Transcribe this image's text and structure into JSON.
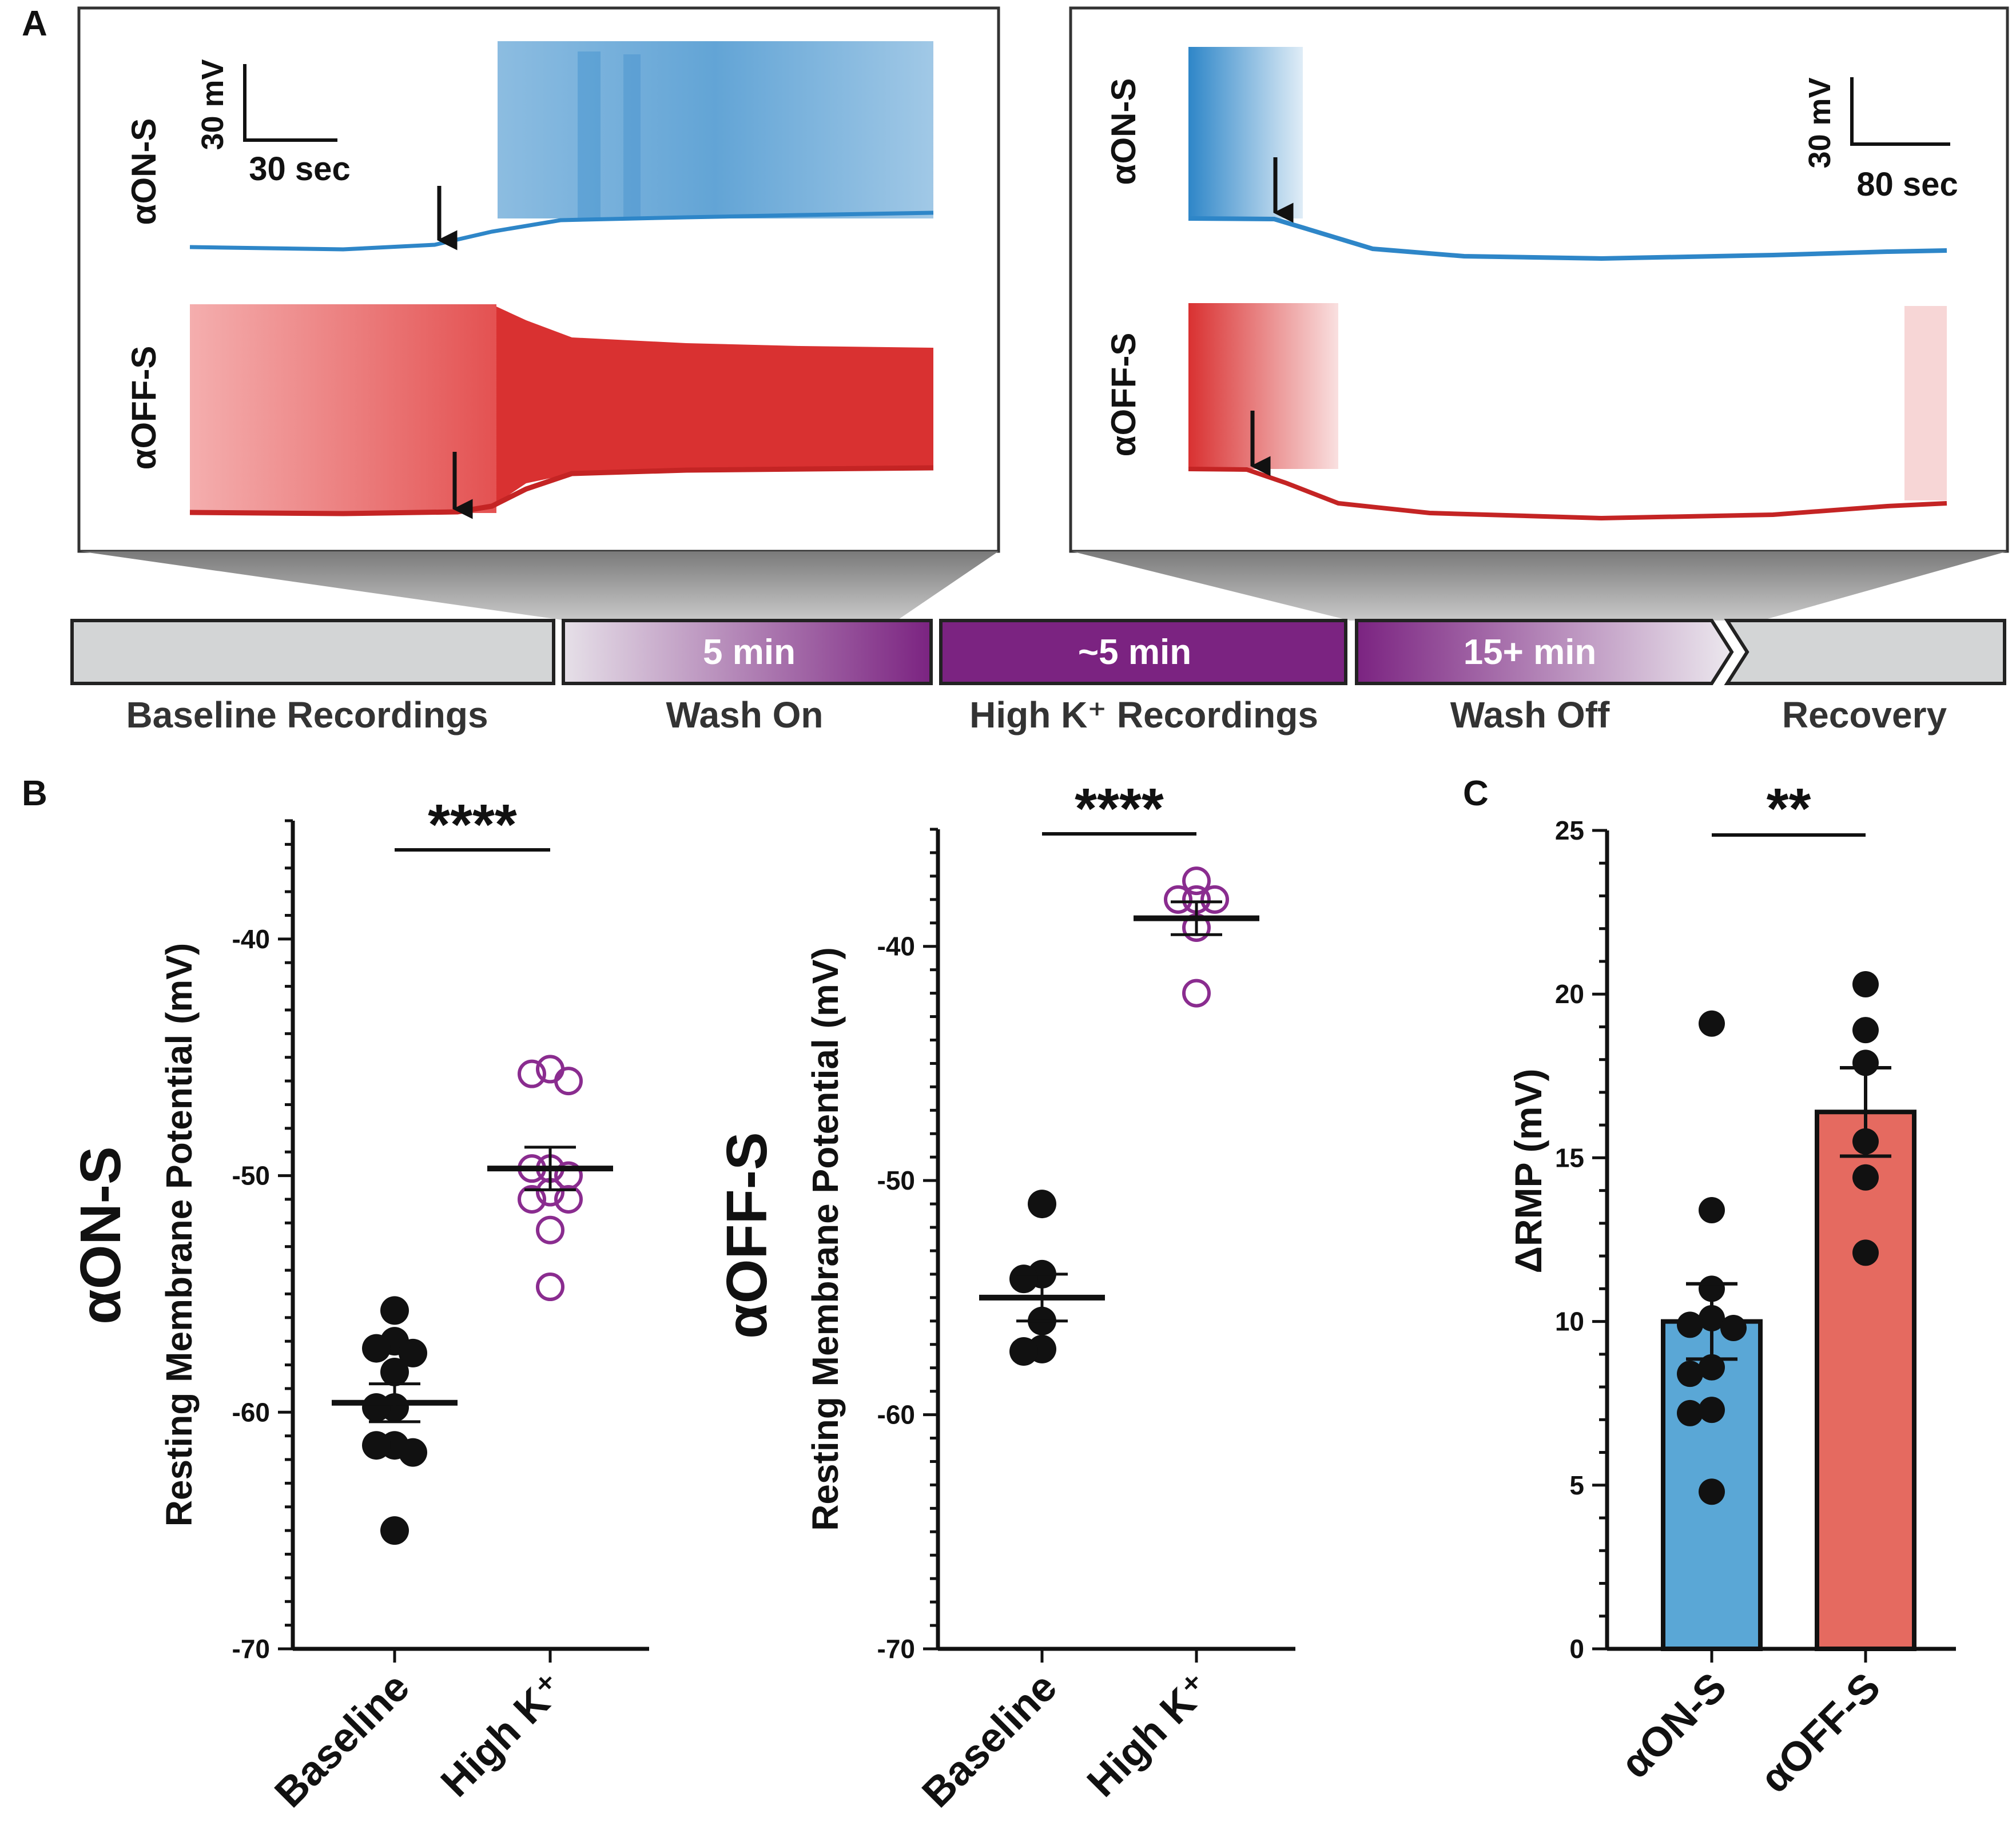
{
  "panels": {
    "a": "A",
    "b": "B",
    "c": "C"
  },
  "traces": {
    "left": {
      "on_label": "αON-S",
      "off_label": "αOFF-S",
      "scale_mv": "30 mV",
      "scale_time": "30 sec"
    },
    "right": {
      "on_label": "αON-S",
      "off_label": "αOFF-S",
      "scale_mv": "30 mV",
      "scale_time": "80 sec"
    },
    "colors": {
      "on": "#2e86c8",
      "off": "#d93131"
    }
  },
  "timeline": {
    "stages": [
      {
        "duration": "",
        "label": "Baseline Recordings"
      },
      {
        "duration": "5 min",
        "label": "Wash On"
      },
      {
        "duration": "~5 min",
        "label": "High K⁺ Recordings"
      },
      {
        "duration": "15+ min",
        "label": "Wash Off"
      },
      {
        "duration": "",
        "label": "Recovery"
      }
    ],
    "purple": "#7b2381",
    "gray": "#d3d5d6"
  },
  "chart_data": [
    {
      "type": "scatter",
      "title": "αON-S",
      "ylabel": "Resting Membrane Potential (mV)",
      "categories": [
        "Baseline",
        "High K⁺"
      ],
      "ylim": [
        -70,
        -35
      ],
      "yticks": [
        -70,
        -60,
        -50,
        -40
      ],
      "ytick_labels": [
        "-70",
        "-60",
        "-50",
        "-40"
      ],
      "series": [
        {
          "name": "Baseline",
          "style": "filled",
          "values": [
            -55.7,
            -57.0,
            -57.3,
            -57.5,
            -58.3,
            -59.8,
            -59.8,
            -61.4,
            -61.4,
            -61.7,
            -65.0
          ],
          "mean": -59.6,
          "sem": 0.8
        },
        {
          "name": "High K⁺",
          "style": "open",
          "values": [
            -45.5,
            -45.7,
            -46.0,
            -49.7,
            -49.7,
            -50.0,
            -50.7,
            -51.0,
            -51.0,
            -52.3,
            -54.7
          ],
          "mean": -49.7,
          "sem": 0.9
        }
      ],
      "significance": "****"
    },
    {
      "type": "scatter",
      "title": "αOFF-S",
      "ylabel": "Resting Membrane Potential (mV)",
      "categories": [
        "Baseline",
        "High K⁺"
      ],
      "ylim": [
        -70,
        -35
      ],
      "yticks": [
        -70,
        -60,
        -50,
        -40
      ],
      "ytick_labels": [
        "-70",
        "-60",
        "-50",
        "-40"
      ],
      "series": [
        {
          "name": "Baseline",
          "style": "filled",
          "values": [
            -51.0,
            -54.0,
            -54.2,
            -56.0,
            -57.2,
            -57.3
          ],
          "mean": -55.0,
          "sem": 1.0
        },
        {
          "name": "High K⁺",
          "style": "open",
          "values": [
            -37.2,
            -38.0,
            -38.0,
            -38.0,
            -39.2,
            -42.0
          ],
          "mean": -38.8,
          "sem": 0.7
        }
      ],
      "significance": "****"
    },
    {
      "type": "bar",
      "title": "",
      "ylabel": "ΔRMP (mV)",
      "categories": [
        "αON-S",
        "αOFF-S"
      ],
      "ylim": [
        0,
        25
      ],
      "yticks": [
        0,
        5,
        10,
        15,
        20,
        25
      ],
      "ytick_labels": [
        "0",
        "5",
        "10",
        "15",
        "20",
        "25"
      ],
      "series": [
        {
          "name": "αON-S",
          "mean": 10.0,
          "sem": 1.15,
          "color": "#5aa7d6",
          "points": [
            19.1,
            13.4,
            11.0,
            10.1,
            9.9,
            9.8,
            8.6,
            8.4,
            7.3,
            7.2,
            4.8
          ]
        },
        {
          "name": "αOFF-S",
          "mean": 16.4,
          "sem": 1.35,
          "color": "#e56a60",
          "points": [
            20.3,
            18.9,
            17.9,
            15.5,
            14.4,
            12.1
          ]
        }
      ],
      "significance": "**"
    }
  ]
}
